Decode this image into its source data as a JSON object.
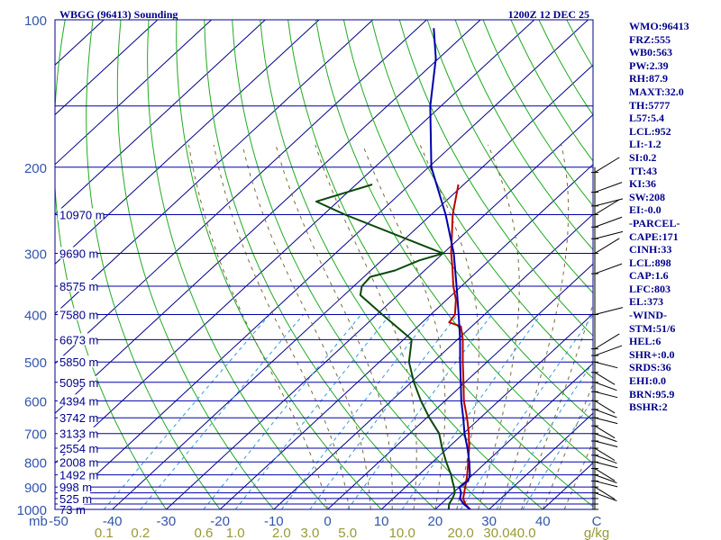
{
  "header": {
    "station": "WBGG (96413) Sounding",
    "time": "1200Z 12 DEC 25"
  },
  "stats": [
    "WMO:96413",
    "FRZ:555",
    "WB0:563",
    "PW:2.39",
    "RH:87.9",
    "MAXT:32.0",
    "TH:5777",
    "L57:5.4",
    "LCL:952",
    "LI:-1.2",
    "SI:0.2",
    "TT:43",
    "KI:36",
    "SW:208",
    "EI:-0.0",
    "-PARCEL-",
    "CAPE:171",
    "CINH:33",
    "LCL:898",
    "CAP:1.6",
    "LFC:803",
    "EL:373",
    "-WIND-",
    "STM:51/6",
    "HEL:6",
    "SHR+:0.0",
    "SRDS:36",
    "EHI:0.0",
    "BRN:95.9",
    "BSHR:2"
  ],
  "colors": {
    "isobar": "#0000aa",
    "skew": "#00008b",
    "dryAdiabat": "#22aa22",
    "moistAdiabat": "#7b6b3a",
    "mixingRatio": "#3399dd",
    "temperature": "#0000aa",
    "dewpoint": "#0a4a0a",
    "parcel": "#bb0000",
    "axisText": "#3355aa",
    "mixText": "#999933",
    "border": "#00008b"
  },
  "chart_data": {
    "type": "line",
    "title": "WBGG (96413) Sounding",
    "subtitle": "1200Z 12 DEC 25",
    "xlabel": "",
    "ylabel": "mb",
    "xlim": [
      -50,
      50
    ],
    "ylim": [
      1000,
      100
    ],
    "pressure_ticks": [
      100,
      200,
      300,
      400,
      500,
      600,
      700,
      800,
      900,
      1000
    ],
    "pressure_ticks_labeled": [
      {
        "p": 100,
        "label": "100"
      },
      {
        "p": 200,
        "label": "200"
      },
      {
        "p": 300,
        "label": "300"
      },
      {
        "p": 400,
        "label": "400"
      },
      {
        "p": 500,
        "label": "500"
      },
      {
        "p": 600,
        "label": "600"
      },
      {
        "p": 700,
        "label": "700"
      },
      {
        "p": 800,
        "label": "800"
      },
      {
        "p": 900,
        "label": "900"
      },
      {
        "p": 1000,
        "label": "1000"
      }
    ],
    "isobars": [
      150,
      250,
      300,
      350,
      400,
      450,
      500,
      550,
      600,
      650,
      700,
      750,
      800,
      850,
      900,
      925,
      950,
      975
    ],
    "temp_ticks": [
      {
        "t": -50,
        "label": "-50"
      },
      {
        "t": -40,
        "label": "-40"
      },
      {
        "t": -30,
        "label": "-30"
      },
      {
        "t": -20,
        "label": "-20"
      },
      {
        "t": -10,
        "label": "-10"
      },
      {
        "t": 0,
        "label": "0"
      },
      {
        "t": 10,
        "label": "10"
      },
      {
        "t": 20,
        "label": "20"
      },
      {
        "t": 30,
        "label": "30"
      },
      {
        "t": 40,
        "label": "40"
      },
      {
        "t": 50,
        "label": "C"
      }
    ],
    "mb_label": "mb",
    "mixing_ratio_labels": [
      "0.1",
      "0.2",
      "0.6",
      "1.0",
      "2.0",
      "3.0",
      "5.0",
      "10.0",
      "20.0",
      "30.0",
      "40.0"
    ],
    "mixing_ratio_unit": "g/kg",
    "heights": [
      {
        "p": 250,
        "label": "10970 m"
      },
      {
        "p": 300,
        "label": "9690 m"
      },
      {
        "p": 350,
        "label": "8575 m"
      },
      {
        "p": 400,
        "label": "7580 m"
      },
      {
        "p": 450,
        "label": "6673 m"
      },
      {
        "p": 500,
        "label": "5850 m"
      },
      {
        "p": 550,
        "label": "5095 m"
      },
      {
        "p": 600,
        "label": "4394 m"
      },
      {
        "p": 650,
        "label": "3742 m"
      },
      {
        "p": 700,
        "label": "3133 m"
      },
      {
        "p": 750,
        "label": "2554 m"
      },
      {
        "p": 800,
        "label": "2008 m"
      },
      {
        "p": 850,
        "label": "1492 m"
      },
      {
        "p": 900,
        "label": "998 m"
      },
      {
        "p": 950,
        "label": "525 m"
      },
      {
        "p": 1000,
        "label": "73 m"
      }
    ],
    "series": [
      {
        "key": "temperature",
        "points": [
          [
            1000,
            26.5
          ],
          [
            975,
            24.2
          ],
          [
            950,
            22.4
          ],
          [
            925,
            21.5
          ],
          [
            900,
            20.0
          ],
          [
            875,
            20.4
          ],
          [
            850,
            19.5
          ],
          [
            800,
            16.8
          ],
          [
            750,
            13.7
          ],
          [
            700,
            10.2
          ],
          [
            650,
            6.8
          ],
          [
            600,
            3.0
          ],
          [
            550,
            -0.8
          ],
          [
            500,
            -5.0
          ],
          [
            450,
            -9.5
          ],
          [
            400,
            -14.8
          ],
          [
            350,
            -20.9
          ],
          [
            300,
            -28.0
          ],
          [
            250,
            -37.3
          ],
          [
            200,
            -49.5
          ],
          [
            150,
            -62.0
          ],
          [
            120,
            -70.5
          ],
          [
            104,
            -77.0
          ]
        ]
      },
      {
        "key": "dewpoint",
        "points": [
          [
            1000,
            22.5
          ],
          [
            975,
            21.5
          ],
          [
            950,
            21.0
          ],
          [
            925,
            20.3
          ],
          [
            900,
            19.0
          ],
          [
            875,
            17.5
          ],
          [
            850,
            16.0
          ],
          [
            800,
            12.5
          ],
          [
            750,
            9.0
          ],
          [
            700,
            5.5
          ],
          [
            650,
            0.5
          ],
          [
            600,
            -4.5
          ],
          [
            550,
            -9.5
          ],
          [
            500,
            -14.5
          ],
          [
            450,
            -18.5
          ],
          [
            400,
            -29.0
          ],
          [
            365,
            -37.0
          ],
          [
            350,
            -38.5
          ],
          [
            335,
            -38.8
          ],
          [
            325,
            -35.5
          ],
          [
            310,
            -33.0
          ],
          [
            300,
            -30.0
          ],
          [
            250,
            -56.0
          ],
          [
            235,
            -64.0
          ],
          [
            217,
            -57.0
          ]
        ]
      },
      {
        "key": "parcel",
        "points": [
          [
            1000,
            26.5
          ],
          [
            975,
            24.5
          ],
          [
            950,
            23.0
          ],
          [
            898,
            21.0
          ],
          [
            850,
            19.0
          ],
          [
            800,
            16.6
          ],
          [
            750,
            14.0
          ],
          [
            700,
            11.0
          ],
          [
            650,
            7.5
          ],
          [
            600,
            3.5
          ],
          [
            550,
            -0.3
          ],
          [
            500,
            -4.5
          ],
          [
            450,
            -9.0
          ],
          [
            423,
            -12.0
          ],
          [
            415,
            -15.0
          ],
          [
            400,
            -15.5
          ],
          [
            373,
            -18.3
          ],
          [
            350,
            -21.5
          ],
          [
            320,
            -25.5
          ],
          [
            300,
            -28.5
          ],
          [
            250,
            -36.0
          ],
          [
            217,
            -41.0
          ]
        ]
      }
    ],
    "wind_barbs_pressures": [
      1000,
      975,
      950,
      925,
      900,
      875,
      850,
      825,
      800,
      775,
      750,
      725,
      700,
      675,
      650,
      625,
      600,
      575,
      550,
      525,
      500,
      485,
      470,
      400,
      330,
      300,
      280,
      265,
      250,
      240,
      225,
      205
    ]
  }
}
